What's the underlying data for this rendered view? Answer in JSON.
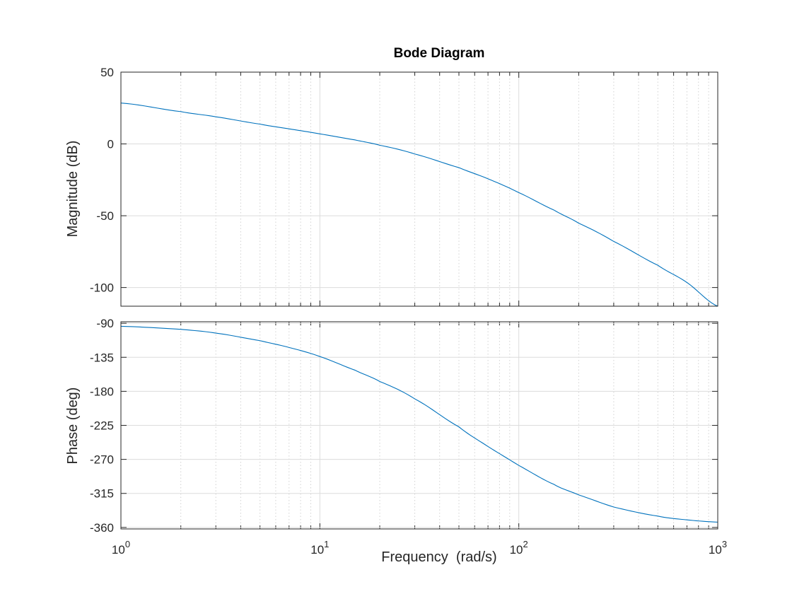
{
  "chart_data": [
    {
      "type": "line",
      "title": "Bode Diagram",
      "ylabel": "Magnitude (dB)",
      "xscale": "log",
      "xlim": [
        1,
        1000
      ],
      "ylim": [
        -113,
        50
      ],
      "yticks": [
        50,
        0,
        -50,
        -100
      ],
      "ytick_labels": [
        "50",
        "0",
        "-50",
        "-100"
      ],
      "grid": true,
      "series": [
        {
          "color": "#0072bd",
          "x": [
            1,
            2,
            3,
            5,
            7,
            10,
            15,
            20,
            30,
            50,
            70,
            100,
            150,
            200,
            300,
            500,
            700,
            1000
          ],
          "y": [
            28.5,
            22.5,
            18.9,
            13.8,
            10.5,
            7.0,
            2.8,
            -0.9,
            -7.0,
            -16.5,
            -24.3,
            -33.9,
            -46.0,
            -55.2,
            -67.9,
            -84.5,
            -96.5,
            -113.0
          ]
        }
      ]
    },
    {
      "type": "line",
      "xlabel": "Frequency  (rad/s)",
      "ylabel": "Phase (deg)",
      "xscale": "log",
      "xlim": [
        1,
        1000
      ],
      "ylim": [
        -362,
        -88
      ],
      "yticks": [
        -90,
        -135,
        -180,
        -225,
        -270,
        -315,
        -360
      ],
      "ytick_labels": [
        "-90",
        "-135",
        "-180",
        "-225",
        "-270",
        "-315",
        "-360"
      ],
      "xtick_labels": [
        {
          "base": "10",
          "exp": "0"
        },
        {
          "base": "10",
          "exp": "1"
        },
        {
          "base": "10",
          "exp": "2"
        },
        {
          "base": "10",
          "exp": "3"
        }
      ],
      "grid": true,
      "series": [
        {
          "color": "#0072bd",
          "x": [
            1,
            2,
            3,
            5,
            7,
            10,
            15,
            20,
            30,
            50,
            70,
            100,
            150,
            200,
            300,
            500,
            700,
            1000
          ],
          "y": [
            -94,
            -98,
            -103,
            -113,
            -122,
            -134,
            -152,
            -167,
            -190,
            -227,
            -253,
            -278,
            -303,
            -317,
            -333,
            -345,
            -350,
            -353
          ]
        }
      ]
    }
  ]
}
